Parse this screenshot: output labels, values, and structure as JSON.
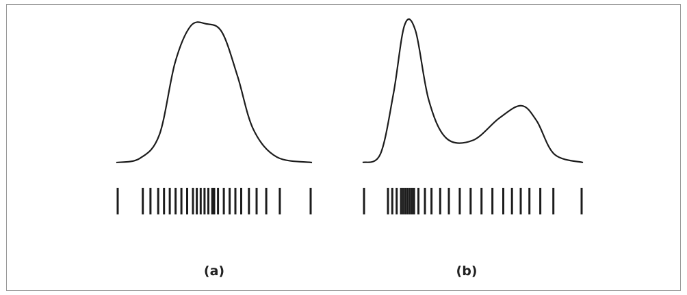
{
  "colors": {
    "curve": "#1c1c1c",
    "ticks": "#1c1c1c",
    "border": "#9a9a9a",
    "background": "#ffffff"
  },
  "panels": [
    {
      "id": "a",
      "label": "(a)",
      "shape": "unimodal",
      "curve": [
        {
          "x": 0.0,
          "y": 0.0
        },
        {
          "x": 0.12,
          "y": 0.03
        },
        {
          "x": 0.22,
          "y": 0.2
        },
        {
          "x": 0.3,
          "y": 0.72
        },
        {
          "x": 0.38,
          "y": 0.985
        },
        {
          "x": 0.46,
          "y": 1.0
        },
        {
          "x": 0.54,
          "y": 0.94
        },
        {
          "x": 0.62,
          "y": 0.62
        },
        {
          "x": 0.7,
          "y": 0.24
        },
        {
          "x": 0.82,
          "y": 0.04
        },
        {
          "x": 1.0,
          "y": 0.0
        }
      ],
      "samples": [
        0.0,
        0.13,
        0.17,
        0.21,
        0.24,
        0.27,
        0.3,
        0.33,
        0.36,
        0.39,
        0.41,
        0.43,
        0.45,
        0.47,
        0.49,
        0.5,
        0.52,
        0.55,
        0.58,
        0.61,
        0.64,
        0.68,
        0.72,
        0.77,
        0.84,
        1.0
      ]
    },
    {
      "id": "b",
      "label": "(b)",
      "shape": "bimodal",
      "curve": [
        {
          "x": 0.0,
          "y": 0.0
        },
        {
          "x": 0.08,
          "y": 0.06
        },
        {
          "x": 0.14,
          "y": 0.5
        },
        {
          "x": 0.19,
          "y": 0.99
        },
        {
          "x": 0.24,
          "y": 0.95
        },
        {
          "x": 0.3,
          "y": 0.45
        },
        {
          "x": 0.38,
          "y": 0.175
        },
        {
          "x": 0.5,
          "y": 0.16
        },
        {
          "x": 0.62,
          "y": 0.32
        },
        {
          "x": 0.72,
          "y": 0.41
        },
        {
          "x": 0.79,
          "y": 0.3
        },
        {
          "x": 0.87,
          "y": 0.06
        },
        {
          "x": 1.0,
          "y": 0.0
        }
      ],
      "samples": [
        0.0,
        0.11,
        0.13,
        0.15,
        0.17,
        0.18,
        0.19,
        0.2,
        0.21,
        0.22,
        0.23,
        0.25,
        0.28,
        0.31,
        0.35,
        0.39,
        0.44,
        0.49,
        0.54,
        0.59,
        0.64,
        0.68,
        0.72,
        0.76,
        0.81,
        0.87,
        1.0
      ]
    }
  ]
}
